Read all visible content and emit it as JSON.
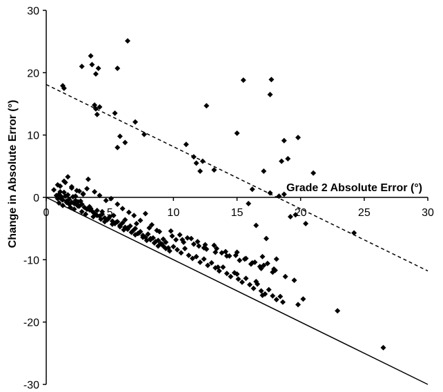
{
  "chart_data": {
    "type": "scatter",
    "title": "",
    "xlabel": "Grade 2 Absolute Error (°)",
    "ylabel": "Change in Absolute Error (°)",
    "xlim": [
      0,
      30
    ],
    "ylim": [
      -30,
      30
    ],
    "x_ticks": [
      0,
      5,
      10,
      15,
      20,
      25,
      30
    ],
    "y_ticks": [
      -30,
      -20,
      -10,
      0,
      10,
      20,
      30
    ],
    "grid": false,
    "legend": "none",
    "marker": "diamond",
    "series": [
      {
        "x": [
          3.5,
          6.4,
          3.6,
          2.8,
          4.1,
          5.6,
          3.9,
          1.3,
          1.4,
          3.8,
          4.2,
          3.9,
          5.4,
          5.8,
          7.0,
          6.2,
          7.7,
          5.6,
          4.0,
          12.6,
          15.5,
          17.7,
          17.6,
          15.0,
          11.0,
          12.1,
          11.6,
          12.3,
          11.8,
          13.2,
          18.7,
          19.0,
          18.5,
          19.8,
          21.0,
          17.1,
          16.2,
          15.9,
          17.6,
          18.3,
          18.7,
          16.5,
          17.3,
          17.0,
          18.1,
          19.2,
          19.6,
          20.4,
          24.2,
          19.8,
          20.2,
          18.6,
          22.9,
          26.5,
          16.5,
          15.0,
          17.0,
          13.5,
          0.8,
          0.9,
          1.0,
          1.2,
          1.3,
          1.4,
          1.5,
          1.6,
          1.7,
          1.8,
          2.0,
          2.1,
          2.2,
          2.3,
          2.4,
          2.5,
          2.6,
          2.8,
          3.0,
          3.2,
          3.4,
          3.6,
          3.8,
          4.0,
          4.2,
          4.4,
          4.6,
          4.8,
          5.0,
          5.2,
          5.4,
          5.6,
          5.8,
          6.0,
          6.2,
          6.4,
          6.6,
          6.8,
          7.0,
          7.2,
          7.4,
          7.6,
          7.8,
          8.0,
          8.2,
          8.4,
          8.6,
          8.8,
          9.0,
          9.2,
          9.4,
          9.6,
          1.0,
          1.3,
          1.6,
          1.9,
          2.2,
          2.5,
          2.8,
          3.1,
          3.4,
          3.7,
          4.0,
          4.3,
          4.6,
          4.9,
          5.2,
          5.5,
          5.8,
          6.1,
          6.4,
          6.7,
          7.0,
          7.3,
          7.6,
          7.9,
          8.2,
          8.5,
          8.8,
          9.1,
          9.4,
          9.7,
          1.1,
          1.5,
          2.0,
          2.4,
          2.9,
          3.3,
          3.8,
          4.2,
          4.7,
          5.1,
          5.6,
          6.0,
          6.5,
          6.9,
          7.4,
          7.8,
          8.3,
          8.7,
          9.2,
          10.0,
          10.3,
          10.6,
          10.9,
          11.2,
          11.5,
          11.8,
          12.1,
          12.4,
          12.7,
          13.0,
          13.3,
          13.6,
          13.9,
          14.2,
          14.5,
          14.8,
          15.1,
          15.4,
          15.7,
          16.0,
          16.3,
          16.6,
          16.9,
          17.2,
          17.5,
          17.8,
          18.1,
          18.4,
          10.2,
          10.8,
          11.4,
          12.0,
          12.6,
          13.2,
          13.8,
          14.4,
          15.0,
          15.6,
          16.2,
          16.8,
          17.4,
          18.0,
          9.8,
          10.5,
          11.1,
          11.9,
          12.5,
          13.4,
          14.1,
          14.9,
          15.7,
          16.4,
          17.1,
          17.9,
          0.6,
          0.9,
          1.1,
          1.4,
          1.7,
          2.0,
          2.3,
          2.6,
          2.9,
          3.2,
          1.2,
          1.8,
          2.7,
          3.5,
          4.4,
          5.3,
          6.2,
          7.1,
          8.1,
          8.9,
          9.9,
          10.7,
          11.6,
          12.4,
          13.3,
          14.2,
          15.2,
          16.1,
          16.9,
          17.8,
          18.8,
          19.5
        ],
        "y": [
          22.7,
          25.1,
          21.3,
          21.0,
          20.7,
          20.7,
          19.8,
          17.9,
          17.5,
          14.8,
          14.5,
          14.2,
          13.5,
          9.8,
          12.1,
          8.8,
          10.1,
          8.0,
          13.3,
          14.7,
          18.8,
          18.9,
          16.5,
          10.3,
          8.5,
          4.2,
          6.5,
          5.8,
          5.5,
          4.4,
          9.1,
          6.2,
          5.8,
          9.6,
          3.9,
          4.2,
          1.3,
          -1.0,
          0.7,
          0.2,
          0.5,
          -4.5,
          -6.6,
          -9.5,
          -9.9,
          -3.1,
          -2.8,
          -4.2,
          -5.7,
          -17.2,
          -16.3,
          -16.8,
          -18.2,
          -24.1,
          -13.5,
          -12.3,
          -15.7,
          -11.2,
          0.3,
          -0.2,
          0.5,
          0.1,
          -0.4,
          0.8,
          0.2,
          -0.6,
          0.4,
          -0.3,
          -0.8,
          0.1,
          -1.0,
          -0.5,
          -1.2,
          -0.7,
          -1.4,
          -1.1,
          -1.6,
          -1.9,
          -1.5,
          -2.2,
          -2.6,
          -2.1,
          -3.0,
          -2.7,
          -3.3,
          -3.6,
          -3.1,
          -3.8,
          -4.2,
          -3.9,
          -4.5,
          -4.1,
          -4.8,
          -5.1,
          -4.6,
          -5.4,
          -5.0,
          -5.8,
          -5.5,
          -6.1,
          -6.4,
          -5.9,
          -6.8,
          -6.5,
          -7.1,
          -6.9,
          -7.4,
          -7.8,
          -7.2,
          -8.1,
          -0.9,
          -1.3,
          -0.8,
          -1.6,
          -1.9,
          -1.4,
          -2.3,
          -2.7,
          -2.0,
          -3.1,
          -2.9,
          -3.5,
          -3.9,
          -3.4,
          -4.3,
          -4.0,
          -4.7,
          -5.2,
          -4.9,
          -5.6,
          -6.0,
          -5.7,
          -6.4,
          -6.9,
          -6.6,
          -7.3,
          -7.8,
          -7.5,
          -8.2,
          -8.6,
          1.8,
          2.4,
          1.5,
          1.1,
          0.6,
          2.9,
          0.9,
          0.3,
          -0.5,
          -0.2,
          -1.1,
          -1.8,
          -2.4,
          -2.9,
          -3.7,
          -2.6,
          -4.4,
          -5.3,
          -6.7,
          -7.9,
          -8.4,
          -8.9,
          -8.2,
          -9.3,
          -9.8,
          -9.5,
          -10.4,
          -9.9,
          -10.9,
          -10.5,
          -11.3,
          -11.8,
          -11.2,
          -12.2,
          -12.7,
          -12.1,
          -13.1,
          -13.6,
          -13.0,
          -14.0,
          -14.6,
          -13.9,
          -15.0,
          -15.5,
          -14.8,
          -15.8,
          -16.4,
          -15.9,
          -6.8,
          -7.2,
          -6.6,
          -7.8,
          -8.3,
          -7.7,
          -8.9,
          -9.4,
          -8.8,
          -9.9,
          -10.5,
          -11.1,
          -10.6,
          -11.7,
          -5.4,
          -6.0,
          -6.5,
          -7.1,
          -7.6,
          -8.2,
          -8.7,
          -9.3,
          -9.8,
          -10.4,
          -10.9,
          -11.5,
          1.2,
          2.0,
          0.9,
          2.6,
          3.3,
          1.7,
          0.2,
          1.0,
          0.5,
          1.4,
          -0.3,
          -1.1,
          -0.6,
          -1.8,
          -2.3,
          -2.9,
          -3.6,
          -4.2,
          -4.9,
          -5.5,
          -6.2,
          -6.8,
          -7.5,
          -8.1,
          -8.8,
          -9.4,
          -10.1,
          -10.7,
          -11.4,
          -12.0,
          -12.7,
          -13.3
        ]
      }
    ],
    "lines": [
      {
        "style": "solid",
        "points": [
          [
            0,
            0
          ],
          [
            30,
            -30
          ]
        ]
      },
      {
        "style": "dashed",
        "points": [
          [
            0,
            18.1
          ],
          [
            30,
            -11.8
          ]
        ]
      }
    ]
  }
}
